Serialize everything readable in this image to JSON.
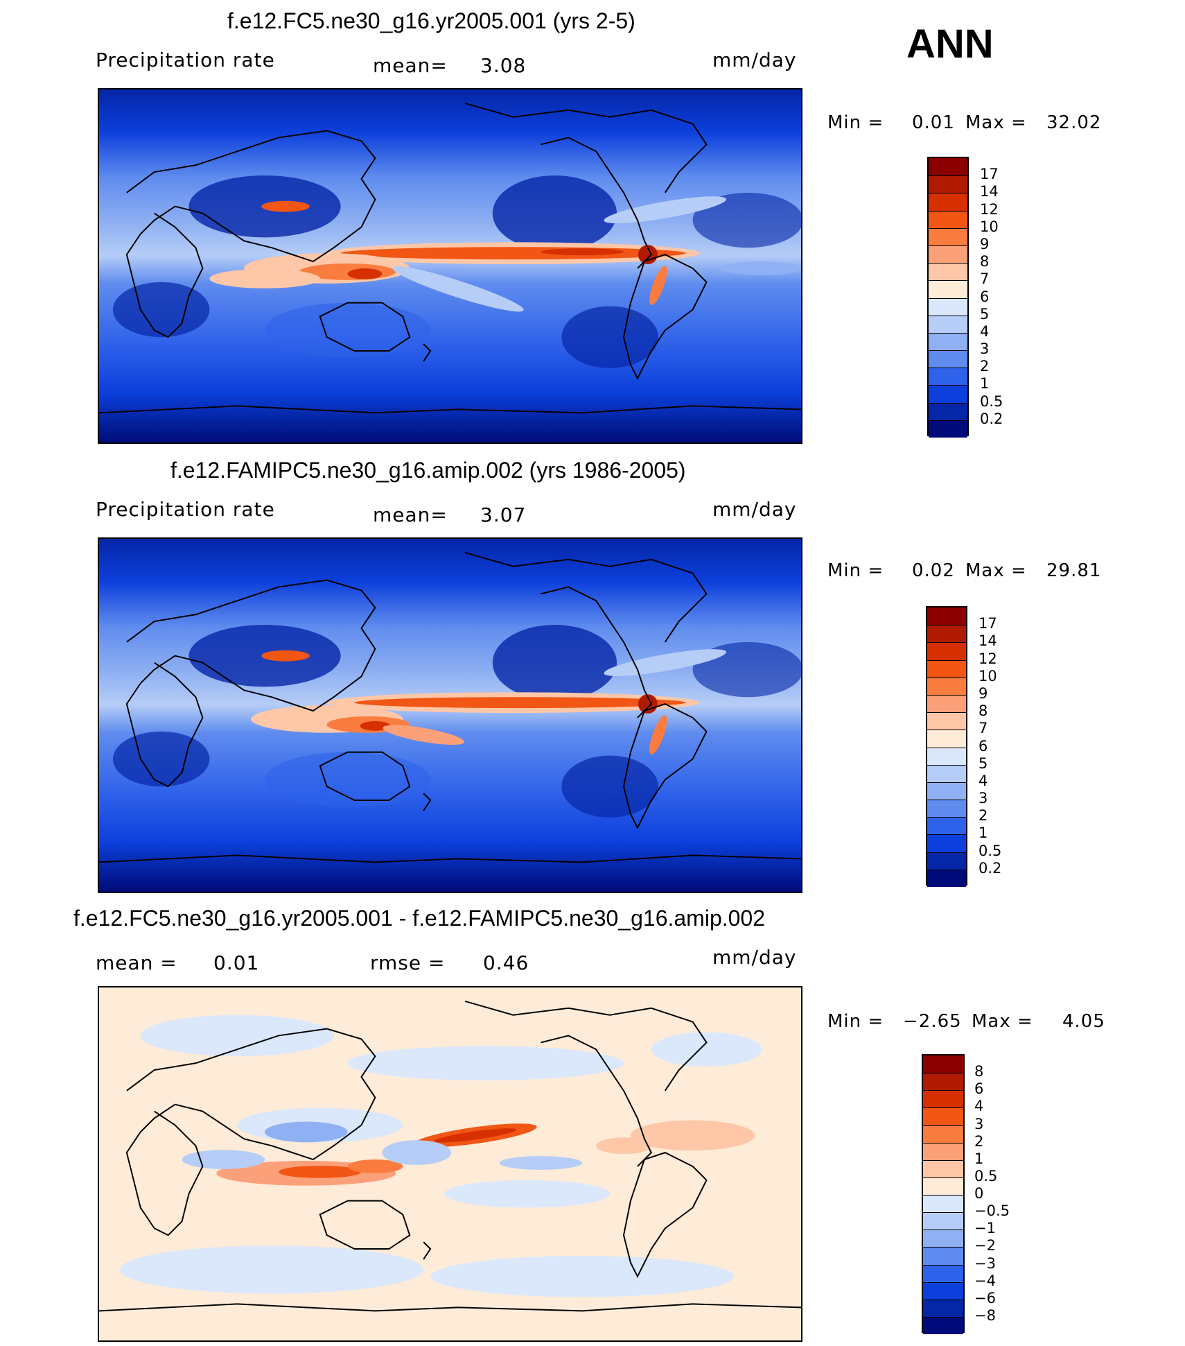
{
  "season": "ANN",
  "panels": [
    {
      "id": "test",
      "title": "f.e12.FC5.ne30_g16.yr2005.001 (yrs 2-5)",
      "left_label": "Precipitation  rate",
      "mid_label": "mean=",
      "mid_value": "3.08",
      "units": "mm/day",
      "min_label": "Min  =",
      "min_value": "0.01",
      "max_label": "Max  =",
      "max_value": "32.02",
      "colorbar_ticks": [
        "17",
        "14",
        "12",
        "10",
        "9",
        "8",
        "7",
        "6",
        "5",
        "4",
        "3",
        "2",
        "1",
        "0.5",
        "0.2"
      ]
    },
    {
      "id": "control",
      "title": "f.e12.FAMIPC5.ne30_g16.amip.002 (yrs 1986-2005)",
      "left_label": "Precipitation  rate",
      "mid_label": "mean=",
      "mid_value": "3.07",
      "units": "mm/day",
      "min_label": "Min  =",
      "min_value": "0.02",
      "max_label": "Max  =",
      "max_value": "29.81",
      "colorbar_ticks": [
        "17",
        "14",
        "12",
        "10",
        "9",
        "8",
        "7",
        "6",
        "5",
        "4",
        "3",
        "2",
        "1",
        "0.5",
        "0.2"
      ]
    },
    {
      "id": "difference",
      "title": "f.e12.FC5.ne30_g16.yr2005.001 - f.e12.FAMIPC5.ne30_g16.amip.002",
      "left_label": "mean  =",
      "left_value": "0.01",
      "mid_label": "rmse  =",
      "mid_value": "0.46",
      "units": "mm/day",
      "min_label": "Min  =",
      "min_value": "−2.65",
      "max_label": "Max  =",
      "max_value": "4.05",
      "colorbar_ticks": [
        "8",
        "6",
        "4",
        "3",
        "2",
        "1",
        "0.5",
        "0",
        "−0.5",
        "−1",
        "−2",
        "−3",
        "−4",
        "−6",
        "−8"
      ]
    }
  ],
  "colors": {
    "precip_scale": [
      "#8b0000",
      "#b01a00",
      "#d63000",
      "#f15614",
      "#fa7d3f",
      "#fca07a",
      "#fdc7a8",
      "#feebd8",
      "#dbe8fb",
      "#b6cdf7",
      "#8fb0f2",
      "#5f8cee",
      "#2f62ea",
      "#0c3fdb",
      "#0526a7",
      "#000b7a"
    ],
    "diff_scale": [
      "#8b0000",
      "#b01a00",
      "#d63000",
      "#f15614",
      "#fa7d3f",
      "#fca07a",
      "#fdc7a8",
      "#feebd8",
      "#dbe8fb",
      "#b6cdf7",
      "#8fb0f2",
      "#5f8cee",
      "#2f62ea",
      "#0c3fdb",
      "#0526a7",
      "#000b7a"
    ]
  }
}
